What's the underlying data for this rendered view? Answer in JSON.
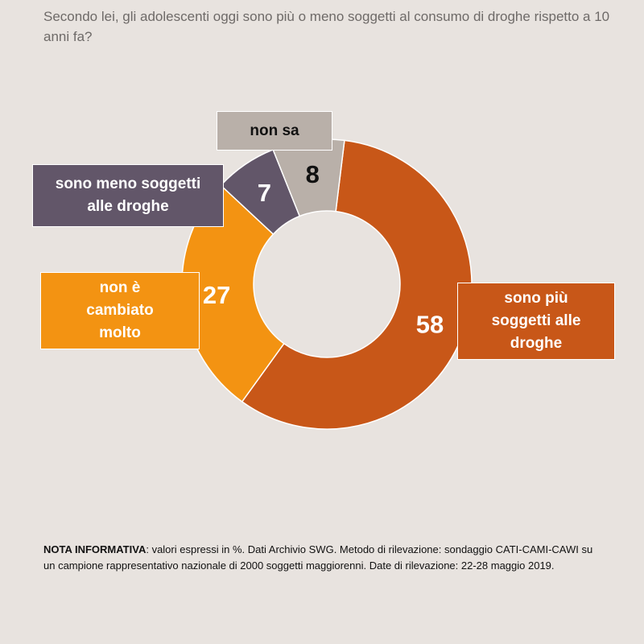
{
  "question": "Secondo lei, gli adolescenti oggi sono più o meno soggetti al consumo di droghe rispetto a 10 anni fa?",
  "chart_data": {
    "type": "pie",
    "donut": true,
    "unit": "%",
    "slices": [
      {
        "label": "sono più soggetti alle droghe",
        "value": 58,
        "color": "#c85718",
        "text_color": "#ffffff"
      },
      {
        "label": "non è cambiato molto",
        "value": 27,
        "color": "#f39312",
        "text_color": "#ffffff"
      },
      {
        "label": "sono meno soggetti alle droghe",
        "value": 7,
        "color": "#625669",
        "text_color": "#ffffff"
      },
      {
        "label": "non sa",
        "value": 8,
        "color": "#b9b0a9",
        "text_color": "#111111"
      }
    ]
  },
  "note": {
    "heading": "NOTA INFORMATIVA",
    "text": ": valori espressi in %. Dati Archivio SWG. Metodo di rilevazione: sondaggio CATI-CAMI-CAWI su un campione rappresentativo nazionale di 2000 soggetti maggiorenni. Date di rilevazione: 22-28 maggio 2019."
  }
}
